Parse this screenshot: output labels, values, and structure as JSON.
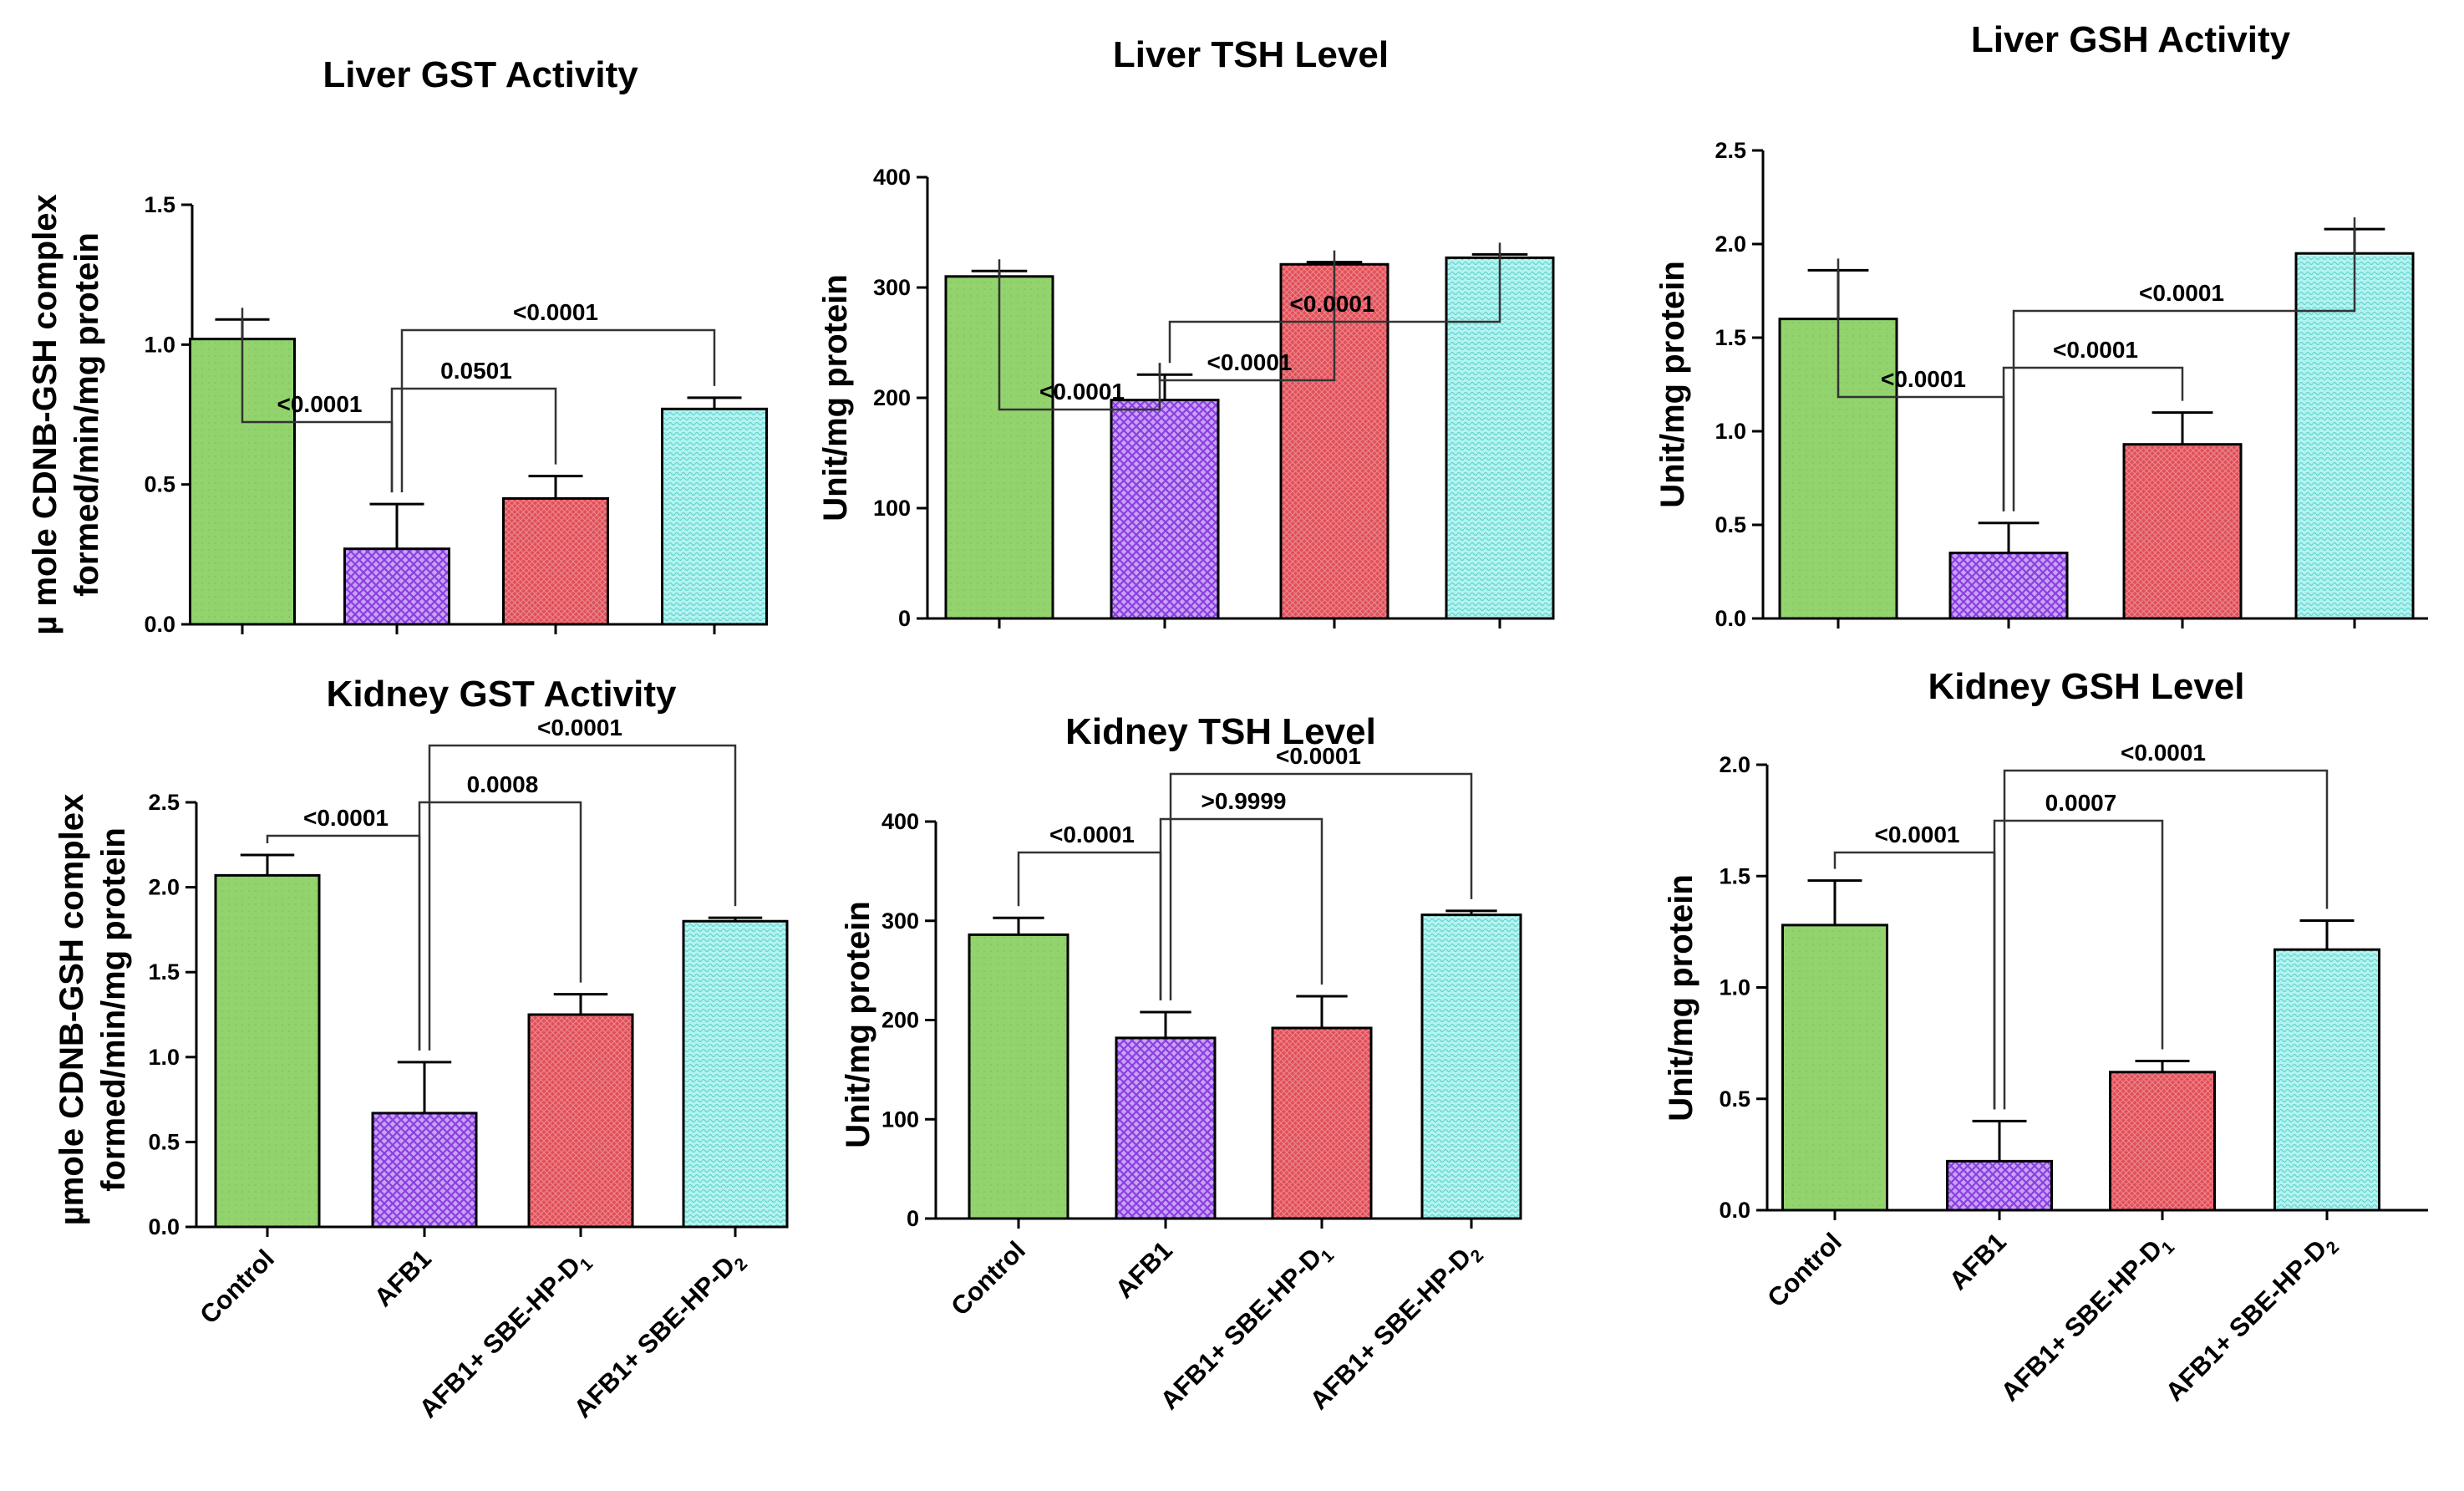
{
  "legend_colors": {
    "Control": "#92d36e",
    "AFB1": "#b98cf0",
    "AFB1+ SBE-HP-D1": "#e0505a",
    "AFB1+ SBE-HP-D2": "#b4f3f0"
  },
  "categories": [
    "Control",
    "AFB1",
    "AFB1+ SBE-HP-D1",
    "AFB1+ SBE-HP-D2"
  ],
  "category_display": [
    {
      "text": "Control",
      "sub": ""
    },
    {
      "text": "AFB1",
      "sub": ""
    },
    {
      "text": "AFB1+ SBE-HP-D",
      "sub": "1"
    },
    {
      "text": "AFB1+ SBE-HP-D",
      "sub": "2"
    }
  ],
  "chart_data": [
    {
      "id": "liver-gst",
      "type": "bar",
      "title": "Liver GST Activity",
      "ylabel_lines": [
        "µ mole CDNB-GSH complex",
        "formed/min/mg protein"
      ],
      "ylim": [
        0,
        1.5
      ],
      "yticks": [
        0.0,
        0.5,
        1.0,
        1.5
      ],
      "ytick_labels": [
        "0.0",
        "0.5",
        "1.0",
        "1.5"
      ],
      "categories": [
        "Control",
        "AFB1",
        "AFB1+ SBE-HP-D1",
        "AFB1+ SBE-HP-D2"
      ],
      "values": [
        1.02,
        0.27,
        0.45,
        0.77
      ],
      "errors": [
        0.07,
        0.16,
        0.08,
        0.04
      ],
      "comparisons": [
        {
          "from": 0,
          "to": 1,
          "label": "<0.0001"
        },
        {
          "from": 1,
          "to": 2,
          "label": "0.0501"
        },
        {
          "from": 1,
          "to": 3,
          "label": "<0.0001"
        }
      ]
    },
    {
      "id": "liver-tsh",
      "type": "bar",
      "title": "Liver TSH Level",
      "ylabel_lines": [
        "Unit/mg protein"
      ],
      "ylim": [
        0,
        400
      ],
      "yticks": [
        0,
        100,
        200,
        300,
        400
      ],
      "ytick_labels": [
        "0",
        "100",
        "200",
        "300",
        "400"
      ],
      "categories": [
        "Control",
        "AFB1",
        "AFB1+ SBE-HP-D1",
        "AFB1+ SBE-HP-D2"
      ],
      "values": [
        310,
        198,
        321,
        327
      ],
      "errors": [
        5,
        23,
        2,
        3
      ],
      "comparisons": [
        {
          "from": 0,
          "to": 1,
          "label": "<0.0001"
        },
        {
          "from": 1,
          "to": 2,
          "label": "<0.0001"
        },
        {
          "from": 1,
          "to": 3,
          "label": "<0.0001"
        }
      ]
    },
    {
      "id": "liver-gsh",
      "type": "bar",
      "title": "Liver GSH Activity",
      "ylabel_lines": [
        "Unit/mg protein"
      ],
      "ylim": [
        0,
        2.5
      ],
      "yticks": [
        0.0,
        0.5,
        1.0,
        1.5,
        2.0,
        2.5
      ],
      "ytick_labels": [
        "0.0",
        "0.5",
        "1.0",
        "1.5",
        "2.0",
        "2.5"
      ],
      "categories": [
        "Control",
        "AFB1",
        "AFB1+ SBE-HP-D1",
        "AFB1+ SBE-HP-D2"
      ],
      "values": [
        1.6,
        0.35,
        0.93,
        1.95
      ],
      "errors": [
        0.26,
        0.16,
        0.17,
        0.13
      ],
      "comparisons": [
        {
          "from": 0,
          "to": 1,
          "label": "<0.0001"
        },
        {
          "from": 1,
          "to": 2,
          "label": "<0.0001"
        },
        {
          "from": 1,
          "to": 3,
          "label": "<0.0001"
        }
      ]
    },
    {
      "id": "kidney-gst",
      "type": "bar",
      "title": "Kidney GST Activity",
      "ylabel_lines": [
        "µmole CDNB-GSH  complex",
        "formed/min/mg protein"
      ],
      "ylim": [
        0,
        2.5
      ],
      "yticks": [
        0.0,
        0.5,
        1.0,
        1.5,
        2.0,
        2.5
      ],
      "ytick_labels": [
        "0.0",
        "0.5",
        "1.0",
        "1.5",
        "2.0",
        "2.5"
      ],
      "categories": [
        "Control",
        "AFB1",
        "AFB1+ SBE-HP-D1",
        "AFB1+ SBE-HP-D2"
      ],
      "values": [
        2.07,
        0.67,
        1.25,
        1.8
      ],
      "errors": [
        0.12,
        0.3,
        0.12,
        0.02
      ],
      "comparisons": [
        {
          "from": 0,
          "to": 1,
          "label": "<0.0001"
        },
        {
          "from": 1,
          "to": 2,
          "label": "0.0008"
        },
        {
          "from": 1,
          "to": 3,
          "label": "<0.0001"
        }
      ]
    },
    {
      "id": "kidney-tsh",
      "type": "bar",
      "title": "Kidney TSH Level",
      "ylabel_lines": [
        "Unit/mg protein"
      ],
      "ylim": [
        0,
        400
      ],
      "yticks": [
        0,
        100,
        200,
        300,
        400
      ],
      "ytick_labels": [
        "0",
        "100",
        "200",
        "300",
        "400"
      ],
      "categories": [
        "Control",
        "AFB1",
        "AFB1+ SBE-HP-D1",
        "AFB1+ SBE-HP-D2"
      ],
      "values": [
        286,
        182,
        192,
        306
      ],
      "errors": [
        17,
        26,
        32,
        4
      ],
      "comparisons": [
        {
          "from": 0,
          "to": 1,
          "label": "<0.0001"
        },
        {
          "from": 1,
          "to": 2,
          "label": ">0.9999"
        },
        {
          "from": 1,
          "to": 3,
          "label": "<0.0001"
        }
      ]
    },
    {
      "id": "kidney-gsh",
      "type": "bar",
      "title": "Kidney GSH Level",
      "ylabel_lines": [
        "Unit/mg protein"
      ],
      "ylim": [
        0,
        2.0
      ],
      "yticks": [
        0.0,
        0.5,
        1.0,
        1.5,
        2.0
      ],
      "ytick_labels": [
        "0.0",
        "0.5",
        "1.0",
        "1.5",
        "2.0"
      ],
      "categories": [
        "Control",
        "AFB1",
        "AFB1+ SBE-HP-D1",
        "AFB1+ SBE-HP-D2"
      ],
      "values": [
        1.28,
        0.22,
        0.62,
        1.17
      ],
      "errors": [
        0.2,
        0.18,
        0.05,
        0.13
      ],
      "comparisons": [
        {
          "from": 0,
          "to": 1,
          "label": "<0.0001"
        },
        {
          "from": 1,
          "to": 2,
          "label": "0.0007"
        },
        {
          "from": 1,
          "to": 3,
          "label": "<0.0001"
        }
      ]
    }
  ]
}
